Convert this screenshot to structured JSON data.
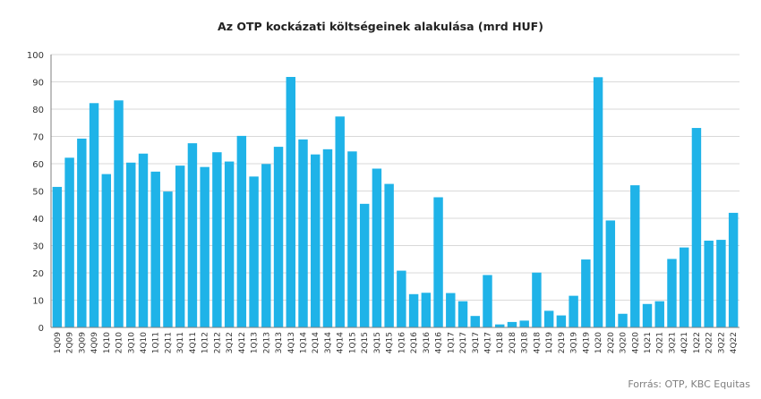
{
  "chart_data": {
    "type": "bar",
    "title": "Az OTP kockázati költségeinek alakulása (mrd HUF)",
    "source": "Forrás: OTP, KBC Equitas",
    "xlabel": "",
    "ylabel": "",
    "ylim": [
      0,
      100
    ],
    "yticks": [
      0,
      10,
      20,
      30,
      40,
      50,
      60,
      70,
      80,
      90,
      100
    ],
    "grid": true,
    "legend": "none",
    "bar_color": "#1fb3e8",
    "categories": [
      "1Q09",
      "2Q09",
      "3Q09",
      "4Q09",
      "1Q10",
      "2Q10",
      "3Q10",
      "4Q10",
      "1Q11",
      "2Q11",
      "3Q11",
      "4Q11",
      "1Q12",
      "2Q12",
      "3Q12",
      "4Q12",
      "1Q13",
      "2Q13",
      "3Q13",
      "4Q13",
      "1Q14",
      "2Q14",
      "3Q14",
      "4Q14",
      "1Q15",
      "2Q15",
      "3Q15",
      "4Q15",
      "1Q16",
      "2Q16",
      "3Q16",
      "4Q16",
      "1Q17",
      "2Q17",
      "3Q17",
      "4Q17",
      "1Q18",
      "2Q18",
      "3Q18",
      "4Q18",
      "1Q19",
      "2Q19",
      "3Q19",
      "4Q19",
      "1Q20",
      "2Q20",
      "3Q20",
      "4Q20",
      "1Q21",
      "2Q21",
      "3Q21",
      "4Q21",
      "1Q22",
      "2Q22",
      "3Q22",
      "4Q22"
    ],
    "values": [
      51.5,
      62.2,
      69.2,
      82.2,
      56.2,
      83.2,
      60.4,
      63.7,
      57.1,
      49.8,
      59.3,
      67.5,
      58.8,
      64.2,
      60.8,
      70.2,
      55.3,
      59.9,
      66.2,
      91.8,
      68.9,
      63.4,
      65.3,
      77.3,
      64.5,
      45.3,
      58.2,
      52.6,
      20.8,
      12.2,
      12.7,
      47.7,
      12.6,
      9.6,
      4.2,
      19.2,
      1.1,
      2.0,
      2.5,
      20.1,
      6.1,
      4.4,
      11.6,
      24.9,
      91.7,
      39.2,
      5.0,
      52.1,
      8.6,
      9.6,
      25.1,
      29.3,
      73.1,
      31.8,
      32.1,
      42.0
    ]
  }
}
